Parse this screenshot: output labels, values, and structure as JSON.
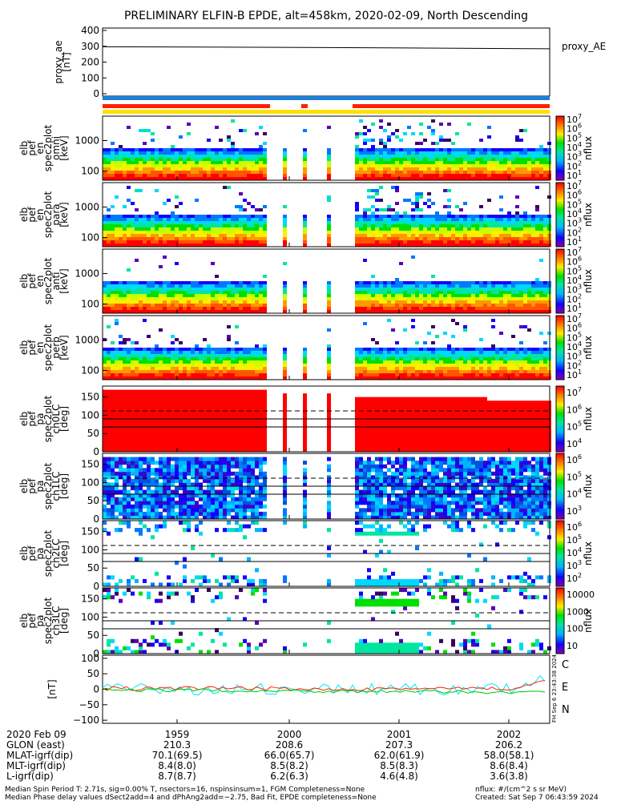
{
  "title": "PRELIMINARY ELFIN-B EPDE, alt=458km, 2020-02-09, North Descending",
  "chart_data": [
    {
      "type": "line",
      "panel": "proxy_ae",
      "ylabel": [
        "proxy_ae",
        "[nT]"
      ],
      "legend": "proxy_AE",
      "ylim": [
        0,
        400
      ],
      "yticks": [
        "400",
        "300",
        "200",
        "100",
        "0"
      ],
      "series": [
        {
          "name": "proxy_AE",
          "x": [
            0,
            0.5,
            1.0
          ],
          "y": [
            297,
            292,
            284
          ]
        }
      ]
    },
    {
      "type": "heatmap",
      "panel": "energy spectrogram 1",
      "ylabel": [
        "elb",
        "pef",
        "en",
        "spec2plot",
        "omni",
        "[keV]"
      ],
      "yscale": "log",
      "yticks": [
        "1000",
        "100"
      ],
      "colorbar": {
        "label": "nflux",
        "ticks": [
          "10^7",
          "10^6",
          "10^5",
          "10^4",
          "10^3",
          "10^2",
          "10^1"
        ]
      }
    },
    {
      "type": "heatmap",
      "panel": "energy spectrogram 2",
      "ylabel": [
        "elb",
        "pef",
        "en",
        "spec2plot",
        "para",
        "[keV]"
      ],
      "yscale": "log",
      "yticks": [
        "1000",
        "100"
      ],
      "colorbar": {
        "label": "nflux",
        "ticks": [
          "10^7",
          "10^6",
          "10^5",
          "10^4",
          "10^3",
          "10^2",
          "10^1"
        ]
      }
    },
    {
      "type": "heatmap",
      "panel": "energy spectrogram 3",
      "ylabel": [
        "elb",
        "pef",
        "en",
        "spec2plot",
        "anti",
        "[keV]"
      ],
      "yscale": "log",
      "yticks": [
        "1000",
        "100"
      ],
      "colorbar": {
        "label": "nflux",
        "ticks": [
          "10^7",
          "10^6",
          "10^5",
          "10^4",
          "10^3",
          "10^2",
          "10^1"
        ]
      }
    },
    {
      "type": "heatmap",
      "panel": "energy spectrogram 4",
      "ylabel": [
        "elb",
        "pef",
        "en",
        "spec2plot",
        "perp",
        "[keV]"
      ],
      "yscale": "log",
      "yticks": [
        "1000",
        "100"
      ],
      "colorbar": {
        "label": "nflux",
        "ticks": [
          "10^7",
          "10^6",
          "10^5",
          "10^4",
          "10^3",
          "10^2",
          "10^1"
        ]
      }
    },
    {
      "type": "heatmap",
      "panel": "pitch angle ch0",
      "ylabel": [
        "elb",
        "pef",
        "pa",
        "spec2plot",
        "ch0LC",
        "[deg]"
      ],
      "ylim": [
        0,
        180
      ],
      "yticks": [
        "150",
        "100",
        "50",
        "0"
      ],
      "colorbar": {
        "label": "nflux",
        "ticks": [
          "10^7",
          "10^6",
          "10^5",
          "10^4"
        ]
      }
    },
    {
      "type": "heatmap",
      "panel": "pitch angle ch1",
      "ylabel": [
        "elb",
        "pef",
        "pa",
        "spec2plot",
        "ch1LC",
        "[deg]"
      ],
      "ylim": [
        0,
        180
      ],
      "yticks": [
        "150",
        "100",
        "50",
        "0"
      ],
      "colorbar": {
        "label": "nflux",
        "ticks": [
          "10^6",
          "10^5",
          "10^4",
          "10^3"
        ]
      }
    },
    {
      "type": "heatmap",
      "panel": "pitch angle ch2",
      "ylabel": [
        "elb",
        "pef",
        "pa",
        "spec2plot",
        "ch2LC",
        "[deg]"
      ],
      "ylim": [
        0,
        180
      ],
      "yticks": [
        "150",
        "100",
        "50",
        "0"
      ],
      "colorbar": {
        "label": "nflux",
        "ticks": [
          "10^6",
          "10^5",
          "10^4",
          "10^3",
          "10^2"
        ]
      }
    },
    {
      "type": "heatmap",
      "panel": "pitch angle ch3",
      "ylabel": [
        "elb",
        "pef",
        "pa",
        "spec2plot",
        "ch3LC",
        "[deg]"
      ],
      "ylim": [
        0,
        180
      ],
      "yticks": [
        "150",
        "100",
        "50",
        "0"
      ],
      "colorbar": {
        "label": "nflux",
        "ticks": [
          "10000",
          "1000",
          "100",
          "10"
        ]
      }
    },
    {
      "type": "line",
      "panel": "magnetic field",
      "ylabel": [
        "[nT]"
      ],
      "ylim": [
        -110,
        110
      ],
      "yticks": [
        "100",
        "50",
        "0",
        "−50",
        "−100"
      ],
      "series": [
        {
          "name": "C"
        },
        {
          "name": "E"
        },
        {
          "name": "N"
        }
      ],
      "vertical_stamp": "FH Sep  6 23:43:38 2024"
    }
  ],
  "xaxis": {
    "date": "2020 Feb 09",
    "tick_times": [
      "1959",
      "2000",
      "2001",
      "2002"
    ],
    "rows": [
      {
        "label": "GLON (east)",
        "values": [
          "210.3",
          "208.6",
          "207.3",
          "206.2"
        ]
      },
      {
        "label": "MLAT-igrf(dip)",
        "values": [
          "70.1(69.5)",
          "66.0(65.7)",
          "62.0(61.9)",
          "58.0(58.1)"
        ]
      },
      {
        "label": "MLT-igrf(dip)",
        "values": [
          "8.4(8.0)",
          "8.5(8.2)",
          "8.5(8.3)",
          "8.6(8.4)"
        ]
      },
      {
        "label": "L-igrf(dip)",
        "values": [
          "8.7(8.7)",
          "6.2(6.3)",
          "4.6(4.8)",
          "3.6(3.8)"
        ]
      }
    ]
  },
  "footer": {
    "line1": "Median Spin Period T: 2.71s, sig=0.00% T, nsectors=16, nspinsinsum=1, FGM Completeness=None",
    "line2": "Median Phase delay values dSect2add=4 and dPhAng2add=−2.75, Bad Fit, EPDE completeness=None",
    "units": "nflux: #/(cm^2 s sr MeV)",
    "created": "Created: Sat Sep  7 06:43:59 2024"
  },
  "colors": {
    "blue_bar": "#1e7fd6",
    "red_bar": "#ff2000",
    "yellow_bar": "#ffe000",
    "c_label": "#00e5ff",
    "e_label": "#ff2000",
    "n_label": "#00c800"
  }
}
